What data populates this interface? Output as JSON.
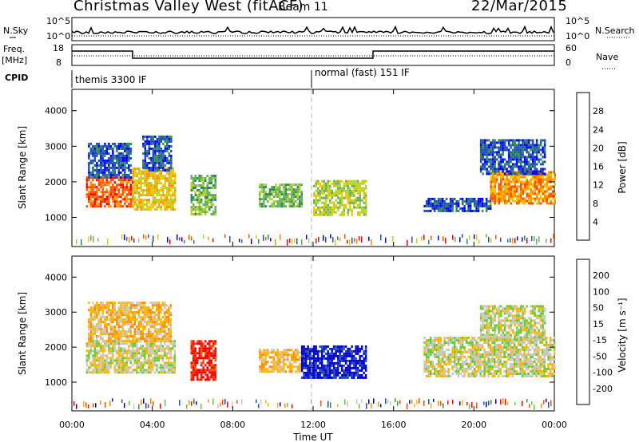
{
  "header": {
    "station": "Christmas Valley West (fitACF)",
    "beam": "Beam 11",
    "date": "22/Mar/2015"
  },
  "strips": {
    "nsky_label": "N.Sky",
    "nsky_ticks": [
      "10^5",
      "10^0"
    ],
    "nsearch_label": "N.Search",
    "freq_label_1": "Freq.",
    "freq_label_2": "[MHz]",
    "freq_ticks": [
      "18",
      "8"
    ],
    "nave_ticks": [
      "60",
      "0"
    ],
    "nave_label": "Nave",
    "cpid_label": "CPID",
    "cpid_segments": [
      "themis 3300 IF",
      "normal (fast) 151 IF"
    ]
  },
  "colors": {
    "power_scale": [
      "#0000ff",
      "#1e50b4",
      "#2e8b57",
      "#66b35a",
      "#b4d232",
      "#f0c800",
      "#ff9600",
      "#ff5000",
      "#ff0000"
    ],
    "velocity_scale": [
      "#ff0000",
      "#ff5000",
      "#ff8c00",
      "#ffb400",
      "#c8c8c0",
      "#66cc33",
      "#339933",
      "#1e50b4",
      "#0000cc"
    ],
    "ground_scatter": "#c8c8c0"
  },
  "chart_data": [
    {
      "type": "heatmap",
      "name": "power",
      "ylabel": "Slant Range [km]",
      "xlabel": "Time UT",
      "x_ticks": [
        "00:00",
        "04:00",
        "08:00",
        "12:00",
        "16:00",
        "20:00",
        "00:00"
      ],
      "y_ticks": [
        "1000",
        "2000",
        "3000",
        "4000"
      ],
      "xlim": [
        0,
        24
      ],
      "ylim": [
        180,
        4600
      ],
      "colorbar_label": "Power [dB]",
      "colorbar_ticks": [
        "4",
        "8",
        "12",
        "16",
        "20",
        "24",
        "28"
      ],
      "blobs": [
        {
          "t0": 0.7,
          "t1": 3.0,
          "r0": 1300,
          "r1": 2150,
          "level": 7
        },
        {
          "t0": 0.8,
          "t1": 2.9,
          "r0": 2100,
          "r1": 3100,
          "level": 1
        },
        {
          "t0": 3.0,
          "t1": 5.1,
          "r0": 1250,
          "r1": 2400,
          "level": 5
        },
        {
          "t0": 3.5,
          "t1": 4.9,
          "r0": 2300,
          "r1": 3300,
          "level": 1
        },
        {
          "t0": 5.9,
          "t1": 7.1,
          "r0": 1100,
          "r1": 2200,
          "level": 3
        },
        {
          "t0": 9.3,
          "t1": 11.4,
          "r0": 1300,
          "r1": 1950,
          "level": 3
        },
        {
          "t0": 12.0,
          "t1": 14.6,
          "r0": 1100,
          "r1": 2050,
          "level": 4
        },
        {
          "t0": 17.5,
          "t1": 20.8,
          "r0": 1200,
          "r1": 1550,
          "level": 1
        },
        {
          "t0": 20.8,
          "t1": 24.0,
          "r0": 1400,
          "r1": 2300,
          "level": 6
        },
        {
          "t0": 20.3,
          "t1": 23.5,
          "r0": 2200,
          "r1": 3200,
          "level": 1
        }
      ]
    },
    {
      "type": "heatmap",
      "name": "velocity",
      "ylabel": "Slant Range [km]",
      "xlabel": "Time UT",
      "x_ticks": [
        "00:00",
        "04:00",
        "08:00",
        "12:00",
        "16:00",
        "20:00",
        "00:00"
      ],
      "y_ticks": [
        "1000",
        "2000",
        "3000",
        "4000"
      ],
      "xlim": [
        0,
        24
      ],
      "ylim": [
        180,
        4600
      ],
      "colorbar_label": "Velocity [m s⁻¹]",
      "colorbar_ticks": [
        "-200",
        "-100",
        "-50",
        "-15",
        "15",
        "50",
        "100",
        "200"
      ],
      "blobs": [
        {
          "t0": 0.7,
          "t1": 5.1,
          "r0": 1250,
          "r1": 2200,
          "level": 4
        },
        {
          "t0": 0.8,
          "t1": 4.9,
          "r0": 2200,
          "r1": 3300,
          "level": 3
        },
        {
          "t0": 5.9,
          "t1": 7.1,
          "r0": 1100,
          "r1": 2200,
          "level": 0
        },
        {
          "t0": 9.3,
          "t1": 11.4,
          "r0": 1300,
          "r1": 1950,
          "level": 3
        },
        {
          "t0": 11.4,
          "t1": 14.6,
          "r0": 1100,
          "r1": 2050,
          "level": 8
        },
        {
          "t0": 17.5,
          "t1": 24.0,
          "r0": 1200,
          "r1": 2300,
          "level": 4
        },
        {
          "t0": 20.3,
          "t1": 23.5,
          "r0": 2200,
          "r1": 3200,
          "level": 4
        }
      ]
    }
  ]
}
